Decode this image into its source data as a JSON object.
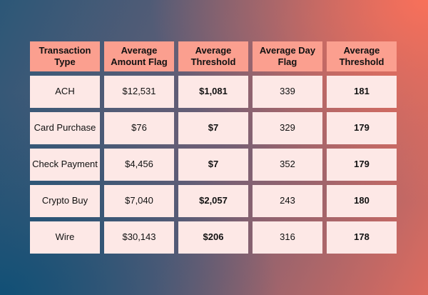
{
  "chart_data": {
    "type": "table",
    "columns": [
      "Transaction Type",
      "Average Amount Flag",
      "Average Threshold",
      "Average Day Flag",
      "Average Threshold"
    ],
    "rows": [
      [
        "ACH",
        "$12,531",
        "$1,081",
        "339",
        "181"
      ],
      [
        "Card Purchase",
        "$76",
        "$7",
        "329",
        "179"
      ],
      [
        "Check Payment",
        "$4,456",
        "$7",
        "352",
        "179"
      ],
      [
        "Crypto Buy",
        "$7,040",
        "$2,057",
        "243",
        "180"
      ],
      [
        "Wire",
        "$30,143",
        "$206",
        "316",
        "178"
      ]
    ],
    "bold_columns": [
      2,
      4
    ]
  },
  "colors": {
    "header_bg": "#fb9f8f",
    "cell_bg": "#fde8e6",
    "text": "#111111",
    "gradient_dark": "#115076",
    "gradient_warm": "#f8705a"
  }
}
